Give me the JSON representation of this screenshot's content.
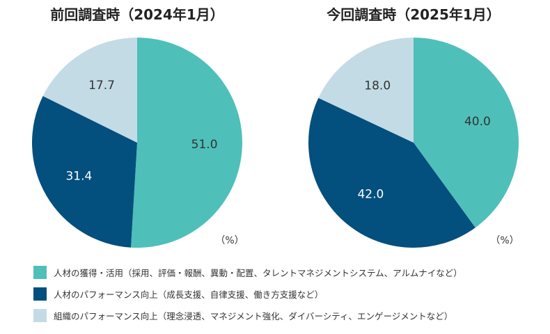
{
  "chart_data": [
    {
      "type": "pie",
      "title": "前回調査時（2024年1月）",
      "unit": "（%）",
      "categories": [
        "人材の獲得・活用（採用、評価・報酬、異動・配置、タレントマネジメントシステム、アルムナイなど）",
        "人材のパフォーマンス向上（成長支援、自律支援、働き方支援など）",
        "組織のパフォーマンス向上（理念浸透、マネジメント強化、ダイバーシティ、エンゲージメントなど）"
      ],
      "values": [
        51.0,
        31.4,
        17.7
      ],
      "labels": [
        "51.0",
        "31.4",
        "17.7"
      ]
    },
    {
      "type": "pie",
      "title": "今回調査時（2025年1月）",
      "unit": "（%）",
      "categories": [
        "人材の獲得・活用（採用、評価・報酬、異動・配置、タレントマネジメントシステム、アルムナイなど）",
        "人材のパフォーマンス向上（成長支援、自律支援、働き方支援など）",
        "組織のパフォーマンス向上（理念浸透、マネジメント強化、ダイバーシティ、エンゲージメントなど）"
      ],
      "values": [
        40.0,
        42.0,
        18.0
      ],
      "labels": [
        "40.0",
        "42.0",
        "18.0"
      ]
    }
  ],
  "legend": {
    "items": [
      {
        "label": "人材の獲得・活用（採用、評価・報酬、異動・配置、タレントマネジメントシステム、アルムナイなど）",
        "color": "#4fbfba"
      },
      {
        "label": "人材のパフォーマンス向上（成長支援、自律支援、働き方支援など）",
        "color": "#034f7e"
      },
      {
        "label": "組織のパフォーマンス向上（理念浸透、マネジメント強化、ダイバーシティ、エンゲージメントなど）",
        "color": "#c3dbe5"
      }
    ]
  },
  "colors": {
    "series": [
      "#4fbfba",
      "#034f7e",
      "#c3dbe5"
    ],
    "label_on_light": "#333333",
    "label_on_dark": "#ffffff"
  }
}
